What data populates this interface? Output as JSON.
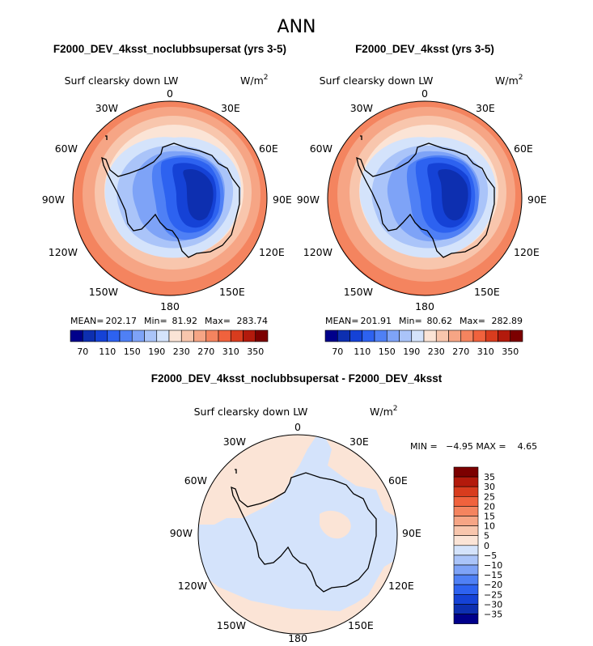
{
  "figure": {
    "title": "ANN",
    "colors": {
      "abs_scale": [
        "#00008b",
        "#0d2fb0",
        "#1542d6",
        "#2d62f0",
        "#4f80f5",
        "#7ea3f7",
        "#aac4f9",
        "#d4e3fb",
        "#fbe4d6",
        "#f8c6ad",
        "#f6a585",
        "#f4845f",
        "#f0623d",
        "#d83c1e",
        "#b31a0c",
        "#7c0000"
      ],
      "diff_scale": [
        "#00008b",
        "#0d2fb0",
        "#1542d6",
        "#2d62f0",
        "#4f80f5",
        "#7ea3f7",
        "#aac4f9",
        "#d4e3fb",
        "#fbe4d6",
        "#f8c6ad",
        "#f6a585",
        "#f4845f",
        "#f0623d",
        "#d83c1e",
        "#b31a0c",
        "#7c0000"
      ]
    }
  },
  "panels": [
    {
      "title": "F2000_DEV_4ksst_noclubbsupersat (yrs 3-5)",
      "variable": "Surf clearsky down LW",
      "units_base": "W/m",
      "units_exp": "2",
      "stats": {
        "mean_label": "MEAN=",
        "mean": "202.17",
        "min_label": "Min=",
        "min": "81.92",
        "max_label": "Max=",
        "max": "283.74"
      },
      "colorbar_labels": [
        "70",
        "110",
        "150",
        "190",
        "230",
        "270",
        "310",
        "350"
      ]
    },
    {
      "title": "F2000_DEV_4ksst (yrs 3-5)",
      "variable": "Surf clearsky down LW",
      "units_base": "W/m",
      "units_exp": "2",
      "stats": {
        "mean_label": "MEAN=",
        "mean": "201.91",
        "min_label": "Min=",
        "min": "80.62",
        "max_label": "Max=",
        "max": "282.89"
      },
      "colorbar_labels": [
        "70",
        "110",
        "150",
        "190",
        "230",
        "270",
        "310",
        "350"
      ]
    }
  ],
  "diff_panel": {
    "title": "F2000_DEV_4ksst_noclubbsupersat - F2000_DEV_4ksst",
    "variable": "Surf clearsky down LW",
    "units_base": "W/m",
    "units_exp": "2",
    "stats_text": "MIN =   −4.95 MAX =    4.65",
    "colorbar_labels": [
      "35",
      "30",
      "25",
      "20",
      "15",
      "10",
      "5",
      "0",
      "−5",
      "−10",
      "−15",
      "−20",
      "−25",
      "−30",
      "−35"
    ]
  },
  "map": {
    "longitude_labels": [
      "0",
      "30E",
      "60E",
      "90E",
      "120E",
      "150E",
      "180",
      "150W",
      "120W",
      "90W",
      "60W",
      "30W"
    ]
  }
}
